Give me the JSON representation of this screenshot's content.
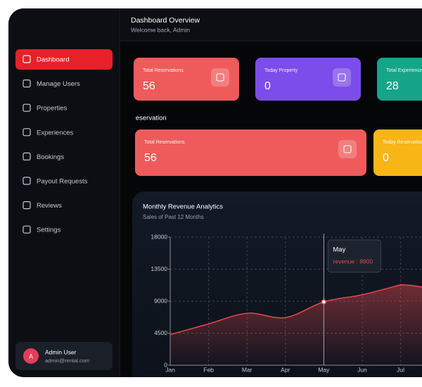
{
  "header": {
    "title": "Dashboard Overview",
    "subtitle": "Welcome back, Admin"
  },
  "nav": [
    "Dashboard",
    "Manage Users",
    "Properties",
    "Experiences",
    "Bookings",
    "Payout Requests",
    "Reviews",
    "Settings"
  ],
  "active_nav": 0,
  "user": {
    "initial": "A",
    "name": "Admin User",
    "email": "admin@rental.com"
  },
  "cards_top": [
    {
      "title": "Total Reservations",
      "value": "56",
      "color": "#ef5b5b"
    },
    {
      "title": "Today Property",
      "value": "0",
      "color": "#7c4dea"
    },
    {
      "title": "Total Experiences",
      "value": "28",
      "color": "#17a589"
    }
  ],
  "section_label": "Reservation",
  "cards_reservation": [
    {
      "title": "Total Reservations",
      "value": "56",
      "color": "#ef5b5b"
    },
    {
      "title": "Today Reservations",
      "value": "0",
      "color": "#f7b516"
    }
  ],
  "chart": {
    "type": "area",
    "title": "Monthly Revenue Analytics",
    "subtitle": "Sales of Past 12 Months",
    "categories": [
      "Jan",
      "Feb",
      "Mar",
      "Apr",
      "May",
      "Jun",
      "Jul"
    ],
    "series": [
      {
        "name": "revenue",
        "color": "#e5484d",
        "values": [
          4300,
          5800,
          7300,
          6700,
          8900,
          9900,
          11300
        ]
      }
    ],
    "ylim": [
      0,
      18000
    ],
    "yticks": [
      0,
      4500,
      9000,
      13500,
      18000
    ],
    "grid": true,
    "tooltip": {
      "category": "May",
      "label": "revenue : 8900",
      "index": 4
    }
  }
}
